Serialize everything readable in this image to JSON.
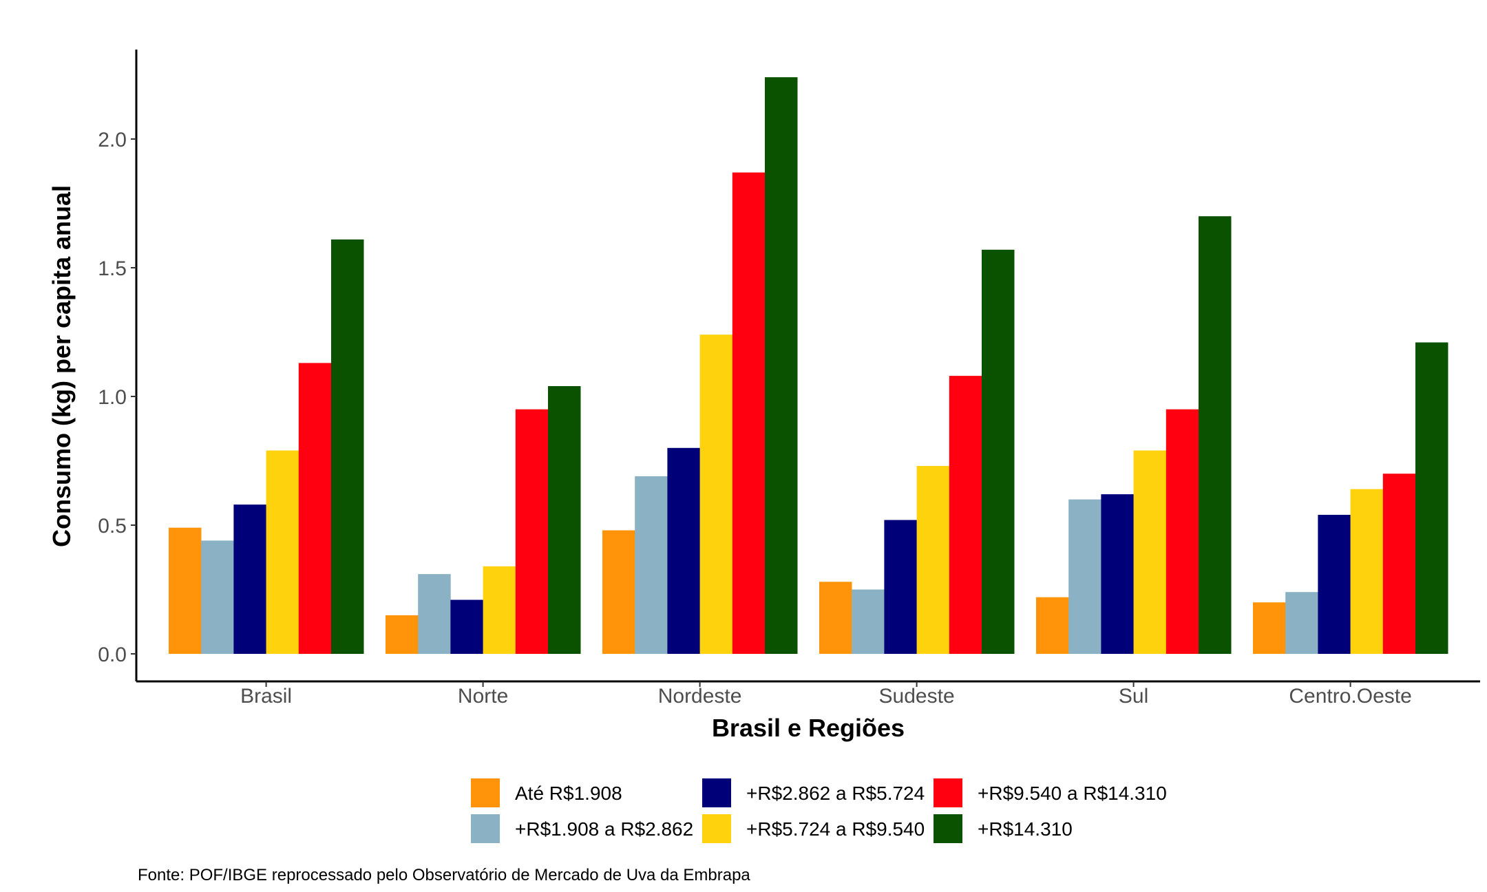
{
  "chart_data": {
    "type": "bar",
    "title": "",
    "xlabel": "Brasil e Regiões",
    "ylabel": "Consumo (kg) per capita anual",
    "ylim": [
      0,
      2.35
    ],
    "yticks": [
      "0.0",
      "0.5",
      "1.0",
      "1.5",
      "2.0"
    ],
    "categories": [
      "Brasil",
      "Norte",
      "Nordeste",
      "Sudeste",
      "Sul",
      "Centro.Oeste"
    ],
    "series": [
      {
        "name": "Até R$1.908",
        "color": "#FF930A",
        "values": [
          0.49,
          0.15,
          0.48,
          0.28,
          0.22,
          0.2
        ]
      },
      {
        "name": "+R$1.908 a R$2.862",
        "color": "#8AB2C4",
        "values": [
          0.44,
          0.31,
          0.69,
          0.25,
          0.6,
          0.24
        ]
      },
      {
        "name": "+R$2.862 a R$5.724",
        "color": "#000078",
        "values": [
          0.58,
          0.21,
          0.8,
          0.52,
          0.62,
          0.54
        ]
      },
      {
        "name": "+R$5.724 a R$9.540",
        "color": "#FFD20E",
        "values": [
          0.79,
          0.34,
          1.24,
          0.73,
          0.79,
          0.64
        ]
      },
      {
        "name": "+R$9.540 a R$14.310",
        "color": "#FF0010",
        "values": [
          1.13,
          0.95,
          1.87,
          1.08,
          0.95,
          0.7
        ]
      },
      {
        "name": "+R$14.310",
        "color": "#0A5200",
        "values": [
          1.61,
          1.04,
          2.24,
          1.57,
          1.7,
          1.21
        ]
      }
    ],
    "grid": false,
    "legend_position": "bottom"
  },
  "source_note": "Fonte: POF/IBGE reprocessado pelo Observatório de Mercado de Uva da Embrapa"
}
